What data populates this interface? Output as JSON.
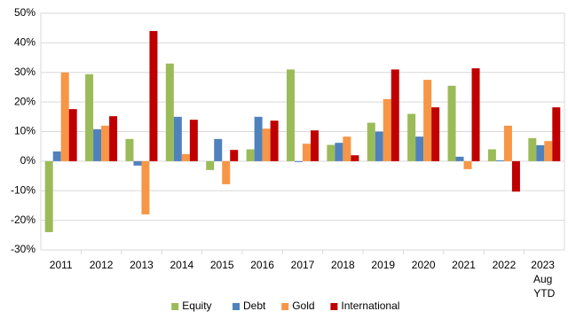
{
  "chart_data": {
    "type": "bar",
    "categories": [
      "2011",
      "2012",
      "2013",
      "2014",
      "2015",
      "2016",
      "2017",
      "2018",
      "2019",
      "2020",
      "2021",
      "2022",
      "2023 Aug YTD"
    ],
    "series": [
      {
        "name": "Equity",
        "color": "#9bbb59",
        "values": [
          -24,
          29.4,
          7.5,
          33,
          -3,
          4,
          31,
          5.5,
          13,
          16,
          25.5,
          4,
          7.8
        ]
      },
      {
        "name": "Debt",
        "color": "#4f81bd",
        "values": [
          3.3,
          10.8,
          -1.5,
          15,
          7.5,
          15,
          -0.3,
          6.2,
          10,
          8.3,
          1.5,
          0.3,
          5.4
        ]
      },
      {
        "name": "Gold",
        "color": "#f79646",
        "values": [
          30,
          12,
          -18,
          2.4,
          -7.8,
          11,
          5.9,
          8.3,
          21,
          27.5,
          -2.7,
          12,
          6.8
        ]
      },
      {
        "name": "International",
        "color": "#c00000",
        "values": [
          17.6,
          15.2,
          44,
          14,
          3.8,
          13.7,
          10.4,
          2,
          31,
          18.2,
          31.4,
          -10.3,
          18.2
        ]
      }
    ],
    "ylim": [
      -30,
      50
    ],
    "yticks": [
      {
        "value": -30,
        "label": "-30%"
      },
      {
        "value": -20,
        "label": "-20%"
      },
      {
        "value": -10,
        "label": "-10%"
      },
      {
        "value": 0,
        "label": "0%"
      },
      {
        "value": 10,
        "label": "10%"
      },
      {
        "value": 20,
        "label": "20%"
      },
      {
        "value": 30,
        "label": "30%"
      },
      {
        "value": 40,
        "label": "40%"
      },
      {
        "value": 50,
        "label": "50%"
      }
    ],
    "grid": true,
    "legend": "bottom"
  }
}
